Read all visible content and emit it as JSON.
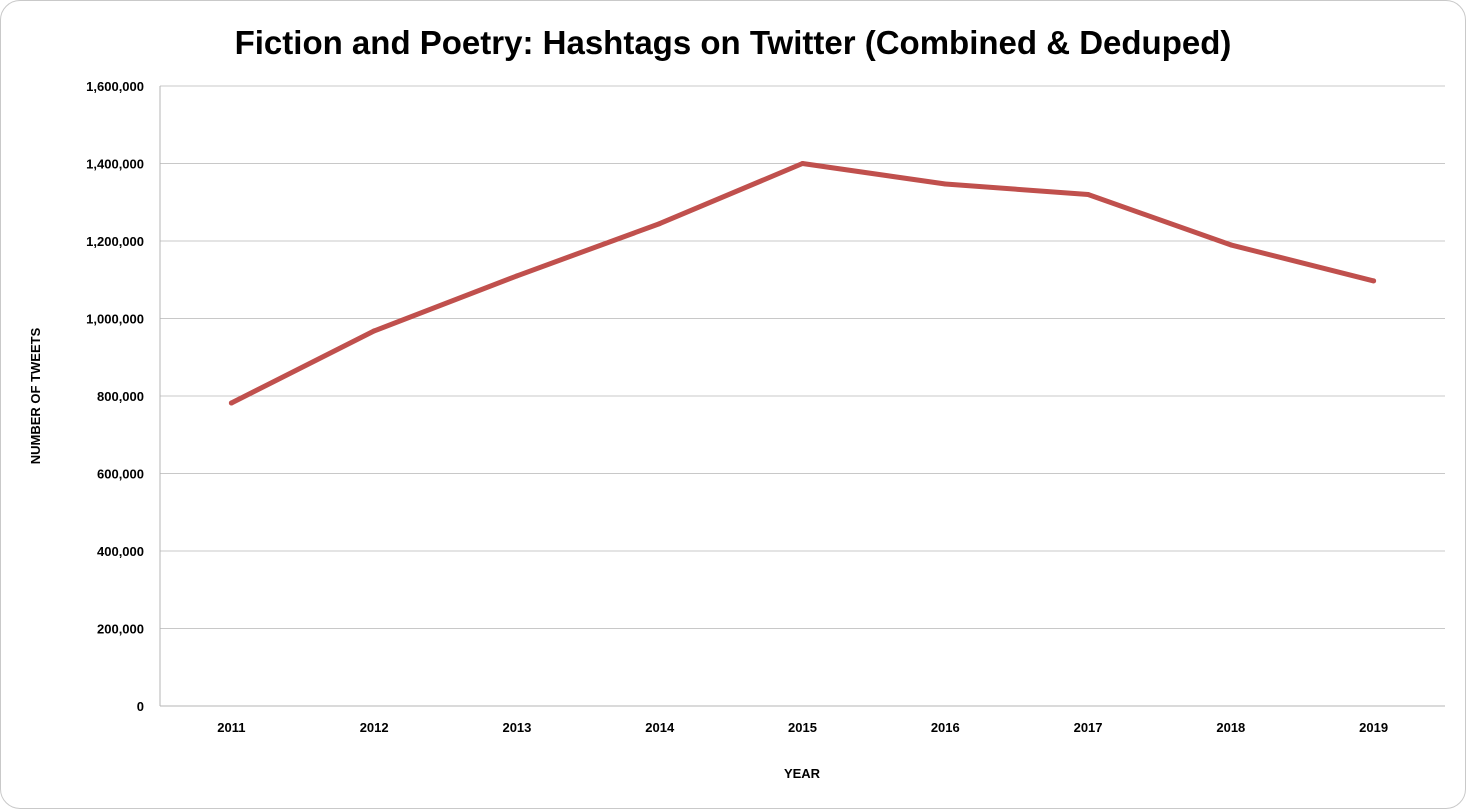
{
  "chart_data": {
    "type": "line",
    "title": "Fiction and Poetry: Hashtags on Twitter (Combined & Deduped)",
    "xlabel": "YEAR",
    "ylabel": "NUMBER OF TWEETS",
    "categories": [
      "2011",
      "2012",
      "2013",
      "2014",
      "2015",
      "2016",
      "2017",
      "2018",
      "2019"
    ],
    "series": [
      {
        "values": [
          782000,
          968000,
          1110000,
          1245000,
          1400000,
          1347000,
          1320000,
          1190000,
          1097000
        ],
        "color": "#c0504d"
      }
    ],
    "ylim": [
      0,
      1600000
    ],
    "yticks": [
      0,
      200000,
      400000,
      600000,
      800000,
      1000000,
      1200000,
      1400000,
      1600000
    ],
    "ytick_labels": [
      "0",
      "200,000",
      "400,000",
      "600,000",
      "800,000",
      "1,000,000",
      "1,200,000",
      "1,400,000",
      "1,600,000"
    ],
    "grid": true,
    "legend": "none"
  }
}
